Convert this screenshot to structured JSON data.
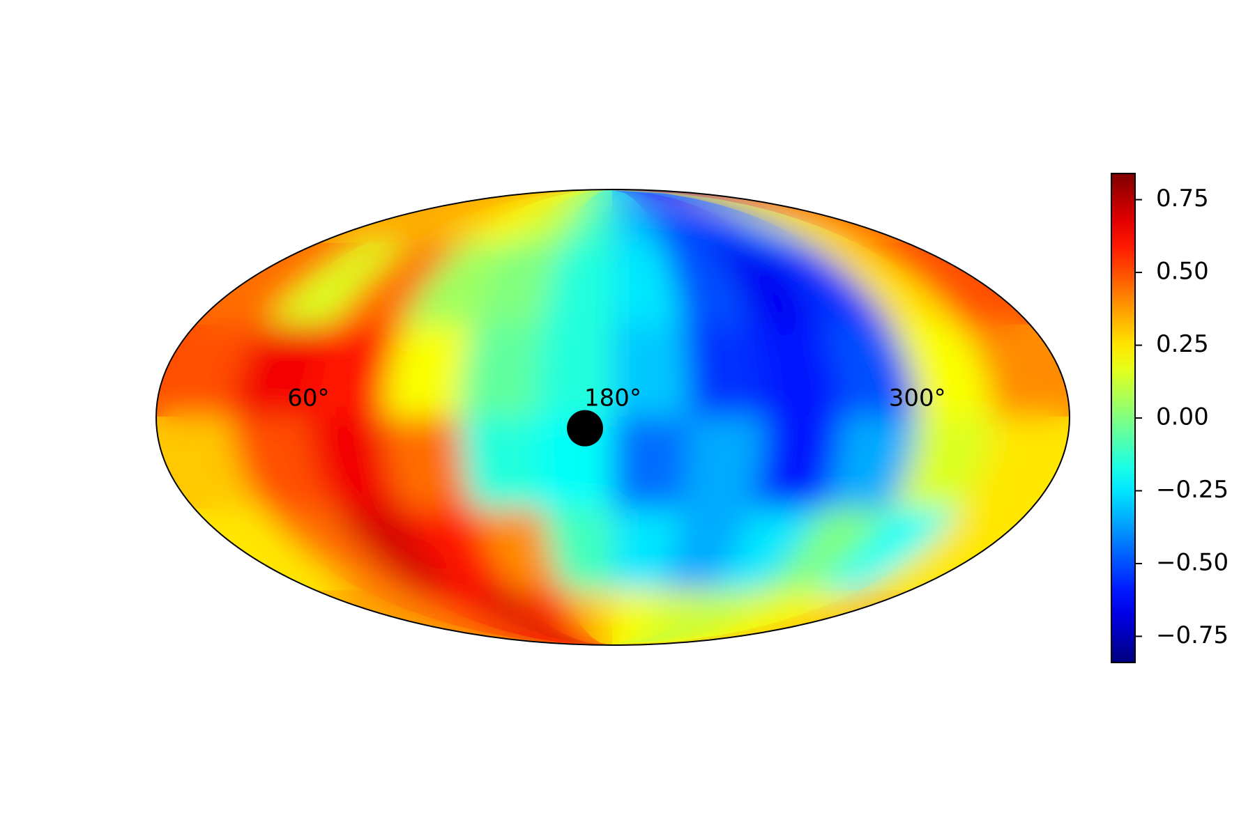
{
  "chart_data": {
    "type": "mollweide_heatmap",
    "colormap": "jet",
    "clim": [
      -0.84,
      0.84
    ],
    "xlim": [
      0,
      360
    ],
    "ylim": [
      -90,
      90
    ],
    "xticks": [
      {
        "value": 60,
        "label": "60°"
      },
      {
        "value": 180,
        "label": "180°"
      },
      {
        "value": 300,
        "label": "300°"
      }
    ],
    "lon": [
      15,
      45,
      75,
      105,
      135,
      165,
      195,
      225,
      255,
      285,
      315,
      345
    ],
    "lat": [
      75,
      45,
      15,
      -15,
      -45,
      -75
    ],
    "values": [
      [
        0.35,
        0.35,
        0.3,
        0.2,
        0.1,
        -0.1,
        -0.3,
        -0.5,
        -0.55,
        -0.4,
        0.2,
        0.45
      ],
      [
        0.45,
        0.15,
        0.45,
        0.05,
        0.0,
        -0.15,
        -0.25,
        -0.5,
        -0.65,
        -0.55,
        0.25,
        0.5
      ],
      [
        0.5,
        0.65,
        0.6,
        0.2,
        -0.05,
        -0.15,
        -0.3,
        -0.55,
        -0.6,
        -0.5,
        0.2,
        0.4
      ],
      [
        0.3,
        0.5,
        0.65,
        0.45,
        -0.15,
        -0.2,
        -0.45,
        -0.35,
        -0.6,
        -0.35,
        0.15,
        0.25
      ],
      [
        0.25,
        0.45,
        0.7,
        0.6,
        0.4,
        -0.1,
        -0.25,
        -0.35,
        -0.25,
        0.0,
        -0.2,
        0.25
      ],
      [
        0.35,
        0.45,
        0.6,
        0.7,
        0.55,
        0.3,
        0.2,
        0.15,
        0.1,
        0.15,
        0.2,
        0.3
      ]
    ],
    "marker": {
      "lon": 169,
      "lat": -3.5,
      "color": "#000000"
    },
    "colorbar_ticks": [
      0.75,
      {
        "value": 0.5,
        "label": "0.50"
      },
      0.25,
      {
        "value": 0,
        "label": "0.00"
      },
      {
        "value": -0.25,
        "label": "−0.25"
      },
      {
        "value": -0.5,
        "label": "−0.50"
      },
      {
        "value": -0.75,
        "label": "−0.75"
      }
    ]
  }
}
